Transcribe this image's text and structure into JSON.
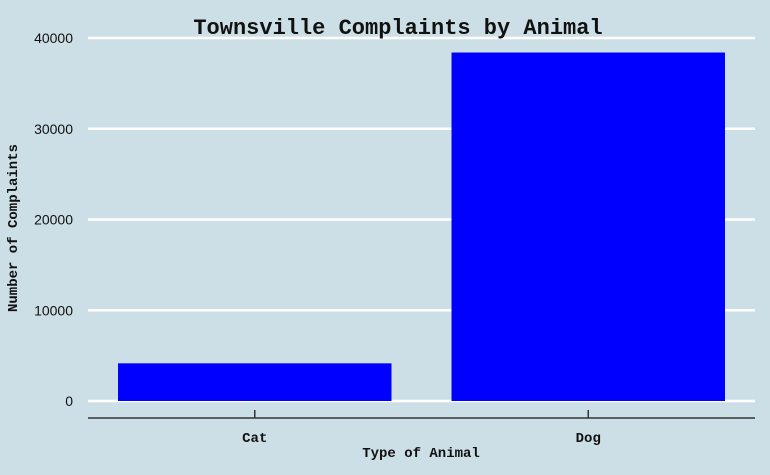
{
  "colors": {
    "background": "#cddfe6",
    "bar": "#0000ff",
    "grid": "#ffffff",
    "axis": "#333333",
    "text": "#111111"
  },
  "chart_data": {
    "type": "bar",
    "title": "Townsville Complaints by Animal",
    "xlabel": "Type of Animal",
    "ylabel": "Number of Complaints",
    "categories": [
      "Cat",
      "Dog"
    ],
    "values": [
      4150,
      38400
    ],
    "ylim": [
      0,
      40000
    ],
    "yticks": [
      0,
      10000,
      20000,
      30000,
      40000
    ],
    "grid": "horizontal",
    "legend": "none"
  }
}
